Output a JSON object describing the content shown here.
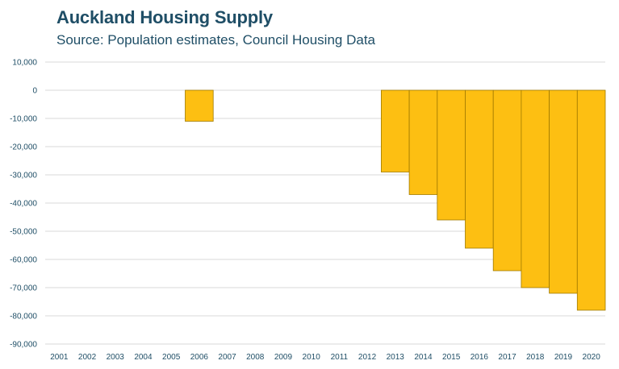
{
  "header": {
    "title": "Auckland Housing Supply",
    "subtitle": "Source: Population estimates, Council Housing Data"
  },
  "chart_data": {
    "type": "bar",
    "title": "Auckland Housing Supply",
    "subtitle": "Source: Population estimates, Council Housing Data",
    "xlabel": "",
    "ylabel": "",
    "categories": [
      "2001",
      "2002",
      "2003",
      "2004",
      "2005",
      "2006",
      "2007",
      "2008",
      "2009",
      "2010",
      "2011",
      "2012",
      "2013",
      "2014",
      "2015",
      "2016",
      "2017",
      "2018",
      "2019",
      "2020"
    ],
    "values": [
      0,
      0,
      0,
      0,
      0,
      -11000,
      0,
      0,
      0,
      0,
      0,
      0,
      -29000,
      -37000,
      -46000,
      -56000,
      -64000,
      -70000,
      -72000,
      -78000
    ],
    "ylim": [
      -90000,
      10000
    ],
    "yticks": [
      10000,
      0,
      -10000,
      -20000,
      -30000,
      -40000,
      -50000,
      -60000,
      -70000,
      -80000,
      -90000
    ],
    "ytick_labels": [
      "10,000",
      "0",
      "-10,000",
      "-20,000",
      "-30,000",
      "-40,000",
      "-50,000",
      "-60,000",
      "-70,000",
      "-80,000",
      "-90,000"
    ],
    "grid": true,
    "legend": "none",
    "colors": {
      "bar": "#fdbf12",
      "bar_edge": "#a07a00",
      "text": "#1f4e66",
      "grid": "#d9d9d9"
    }
  }
}
